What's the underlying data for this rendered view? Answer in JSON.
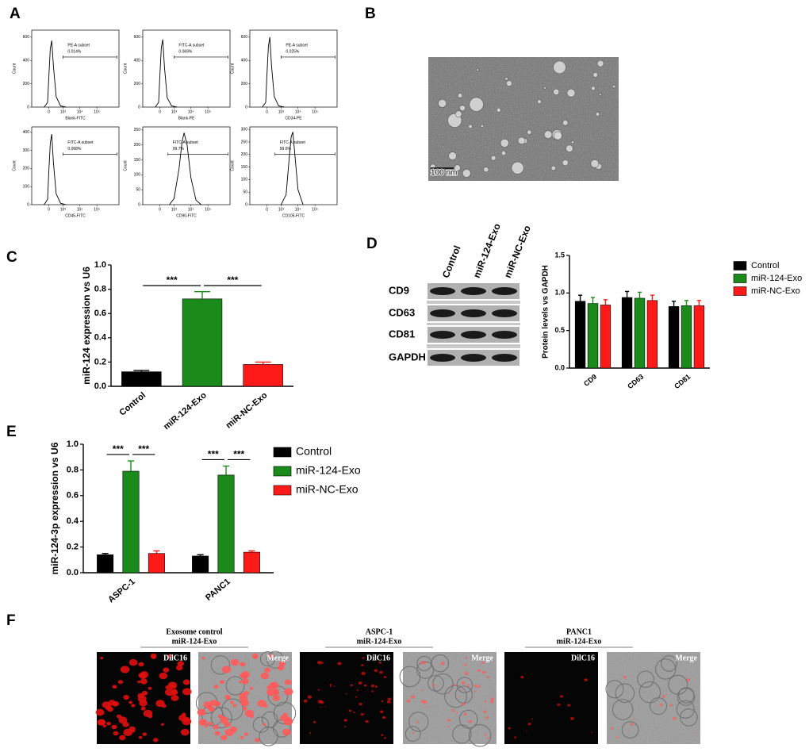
{
  "panel_labels": [
    "A",
    "B",
    "C",
    "D",
    "E",
    "F"
  ],
  "chart_data": [
    {
      "type": "flow",
      "xlabel": "Blank-FITC",
      "ylabel": "Count",
      "xscale": "biexponential",
      "x": [
        -200,
        -50,
        0,
        60,
        120,
        200,
        350,
        700,
        1500
      ],
      "values": [
        0,
        40,
        250,
        500,
        570,
        350,
        90,
        10,
        0
      ],
      "xlim": [
        -1500,
        2000000
      ],
      "xticks": [
        0,
        {
          "value": 1000,
          "label": "10³"
        },
        {
          "value": 10000,
          "label": "10⁴"
        },
        {
          "value": 100000,
          "label": "10⁵"
        }
      ],
      "ylim": [
        0,
        660
      ],
      "yticks": [
        0,
        200,
        400,
        600
      ],
      "gate": [
        1000,
        1500000
      ],
      "annotations": [
        "PE-A subset",
        "0.014%"
      ]
    },
    {
      "type": "flow",
      "xlabel": "Blank-PE",
      "ylabel": "Count",
      "xscale": "biexponential",
      "x": [
        -200,
        -50,
        0,
        60,
        120,
        200,
        350,
        700,
        1500
      ],
      "values": [
        0,
        40,
        260,
        510,
        580,
        340,
        80,
        10,
        0
      ],
      "xlim": [
        -1500,
        2000000
      ],
      "xticks": [
        0,
        {
          "value": 1000,
          "label": "10³"
        },
        {
          "value": 10000,
          "label": "10⁴"
        },
        {
          "value": 100000,
          "label": "10⁵"
        }
      ],
      "ylim": [
        0,
        660
      ],
      "yticks": [
        0,
        200,
        400,
        600
      ],
      "gate": [
        1000,
        1500000
      ],
      "annotations": [
        "FITC-A subset",
        "0.069%"
      ]
    },
    {
      "type": "flow",
      "xlabel": "CD34-PE",
      "ylabel": "Count",
      "xscale": "biexponential",
      "x": [
        -200,
        -50,
        0,
        60,
        120,
        200,
        350,
        700,
        1500
      ],
      "values": [
        0,
        40,
        270,
        520,
        600,
        350,
        90,
        10,
        0
      ],
      "xlim": [
        -1500,
        2000000
      ],
      "xticks": [
        0,
        {
          "value": 1000,
          "label": "10³"
        },
        {
          "value": 10000,
          "label": "10⁴"
        },
        {
          "value": 100000,
          "label": "10⁵"
        }
      ],
      "ylim": [
        0,
        660
      ],
      "yticks": [
        0,
        200,
        400,
        600
      ],
      "gate": [
        1000,
        1500000
      ],
      "annotations": [
        "PE-A subset",
        "0.025%"
      ]
    },
    {
      "type": "flow",
      "xlabel": "CD45-FITC",
      "ylabel": "Count",
      "xscale": "biexponential",
      "x": [
        -200,
        -50,
        0,
        60,
        120,
        200,
        350,
        700,
        1500
      ],
      "values": [
        0,
        30,
        180,
        340,
        390,
        230,
        60,
        8,
        0
      ],
      "xlim": [
        -1500,
        2000000
      ],
      "xticks": [
        0,
        {
          "value": 1000,
          "label": "10³"
        },
        {
          "value": 10000,
          "label": "10⁴"
        },
        {
          "value": 100000,
          "label": "10⁵"
        }
      ],
      "ylim": [
        0,
        430
      ],
      "yticks": [
        0,
        100,
        200,
        300,
        400
      ],
      "gate": [
        1000,
        1500000
      ],
      "annotations": [
        "FITC-A subset",
        "0.068%"
      ]
    },
    {
      "type": "flow",
      "xlabel": "CD90-FITC",
      "ylabel": "Count",
      "xscale": "biexponential",
      "x": [
        500,
        1000,
        2000,
        3000,
        4000,
        6000,
        10000,
        20000,
        40000
      ],
      "values": [
        0,
        20,
        120,
        210,
        240,
        200,
        90,
        15,
        0
      ],
      "xlim": [
        -1500,
        2000000
      ],
      "xticks": [
        0,
        {
          "value": 1000,
          "label": "10³"
        },
        {
          "value": 10000,
          "label": "10⁴"
        },
        {
          "value": 100000,
          "label": "10⁵"
        }
      ],
      "ylim": [
        0,
        260
      ],
      "yticks": [
        0,
        50,
        100,
        150,
        200,
        250
      ],
      "gate": [
        400,
        1500000
      ],
      "annotations": [
        "FITC-A subset",
        "99.7%"
      ]
    },
    {
      "type": "flow",
      "xlabel": "CD105-FITC",
      "ylabel": "Count",
      "xscale": "biexponential",
      "x": [
        1000,
        2000,
        3000,
        4000,
        5000,
        7000,
        10000,
        20000
      ],
      "values": [
        0,
        40,
        180,
        270,
        290,
        180,
        60,
        0
      ],
      "xlim": [
        -1500,
        2000000
      ],
      "xticks": [
        0,
        {
          "value": 1000,
          "label": "10³"
        },
        {
          "value": 10000,
          "label": "10⁴"
        },
        {
          "value": 100000,
          "label": "10⁵"
        }
      ],
      "ylim": [
        0,
        310
      ],
      "yticks": [
        0,
        50,
        100,
        150,
        200,
        250,
        300
      ],
      "gate": [
        400,
        1500000
      ],
      "annotations": [
        "FITC-A subset",
        "99.6%"
      ]
    },
    {
      "type": "bar",
      "ylabel": "miR-124 expression vs U6",
      "categories": [
        "Control",
        "miR-124-Exo",
        "miR-NC-Exo"
      ],
      "values": [
        0.12,
        0.72,
        0.18
      ],
      "errors": [
        0.01,
        0.06,
        0.02
      ],
      "colors": [
        "#000000",
        "#1a8a1a",
        "#ff1a1a"
      ],
      "ylim": [
        0,
        1.0
      ],
      "yticks": [
        {
          "value": 0,
          "label": "0.0"
        },
        0.2,
        0.4,
        0.6,
        0.8,
        {
          "value": 1,
          "label": "1.0"
        }
      ],
      "annotations": [
        "***",
        "***"
      ]
    },
    {
      "type": "grouped_bar",
      "ylabel": "Protein levels vs GAPDH",
      "categories": [
        "CD9",
        "CD63",
        "CD81"
      ],
      "series": [
        {
          "name": "Control",
          "color": "#000000",
          "values": [
            0.89,
            0.94,
            0.82
          ],
          "errors": [
            0.08,
            0.08,
            0.07
          ]
        },
        {
          "name": "miR-124-Exo",
          "color": "#1a8a1a",
          "values": [
            0.86,
            0.93,
            0.83
          ],
          "errors": [
            0.08,
            0.08,
            0.07
          ]
        },
        {
          "name": "miR-NC-Exo",
          "color": "#ff1a1a",
          "values": [
            0.84,
            0.9,
            0.83
          ],
          "errors": [
            0.07,
            0.07,
            0.07
          ]
        }
      ],
      "ylim": [
        0,
        1.5
      ],
      "yticks": [
        {
          "value": 0,
          "label": "0.0"
        },
        0.5,
        {
          "value": 1,
          "label": "1.0"
        },
        1.5
      ],
      "legend": "right",
      "annotations": []
    },
    {
      "type": "grouped_bar",
      "ylabel": "miR-124-3p expression vs U6",
      "categories": [
        "ASPC-1",
        "PANC1"
      ],
      "series": [
        {
          "name": "Control",
          "color": "#000000",
          "values": [
            0.14,
            0.13
          ],
          "errors": [
            0.01,
            0.01
          ]
        },
        {
          "name": "miR-124-Exo",
          "color": "#1a8a1a",
          "values": [
            0.79,
            0.76
          ],
          "errors": [
            0.08,
            0.07
          ]
        },
        {
          "name": "miR-NC-Exo",
          "color": "#ff1a1a",
          "values": [
            0.15,
            0.16
          ],
          "errors": [
            0.02,
            0.01
          ]
        }
      ],
      "ylim": [
        0,
        1.0
      ],
      "yticks": [
        {
          "value": 0,
          "label": "0.0"
        },
        0.2,
        0.4,
        0.6,
        0.8,
        {
          "value": 1,
          "label": "1.0"
        }
      ],
      "legend": "right",
      "annotations": [
        "***",
        "***",
        "***",
        "***"
      ]
    }
  ],
  "panel_b": {
    "scale_bar": "100 nm"
  },
  "panel_d_blot": {
    "columns": [
      "Control",
      "miR-124-Exo",
      "miR-NC-Exo"
    ],
    "rows": [
      "CD9",
      "CD63",
      "CD81",
      "GAPDH"
    ]
  },
  "panel_f": {
    "groups": [
      {
        "title": "Exosome control",
        "subtitle": "miR-124-Exo"
      },
      {
        "title": "ASPC-1",
        "subtitle": "miR-124-Exo"
      },
      {
        "title": "PANC1",
        "subtitle": "miR-124-Exo"
      }
    ],
    "image_labels": [
      "DilC16",
      "Merge"
    ]
  }
}
